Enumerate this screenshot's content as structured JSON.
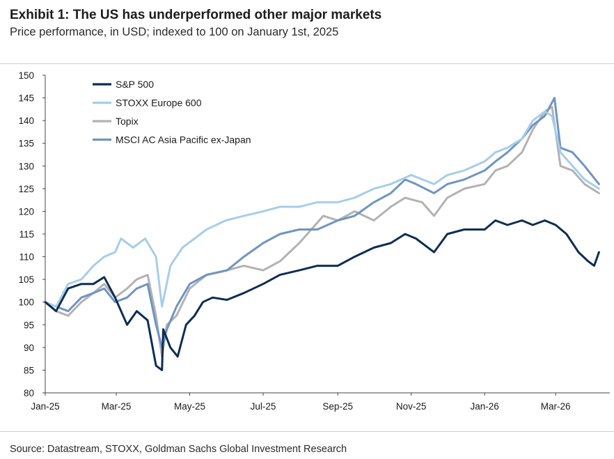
{
  "title": "Exhibit 1: The US has underperformed other major markets",
  "subtitle": "Price performance, in USD; indexed to 100 on January 1st, 2025",
  "source": "Source: Datastream, STOXX, Goldman Sachs Global Investment Research",
  "chart_data": {
    "type": "line",
    "title": "Exhibit 1: The US has underperformed other major markets",
    "ylabel": "",
    "xlabel": "",
    "ylim": [
      80,
      150
    ],
    "yticks": [
      80,
      85,
      90,
      95,
      100,
      105,
      110,
      115,
      120,
      125,
      130,
      135,
      140,
      145,
      150
    ],
    "xlim": [
      "2025-01-01",
      "2026-04-15"
    ],
    "xticks": [
      {
        "date": "2025-01-01",
        "label": "Jan-25"
      },
      {
        "date": "2025-03-01",
        "label": "Mar-25"
      },
      {
        "date": "2025-05-01",
        "label": "May-25"
      },
      {
        "date": "2025-07-01",
        "label": "Jul-25"
      },
      {
        "date": "2025-09-01",
        "label": "Sep-25"
      },
      {
        "date": "2025-11-01",
        "label": "Nov-25"
      },
      {
        "date": "2026-01-01",
        "label": "Jan-26"
      },
      {
        "date": "2026-03-01",
        "label": "Mar-26"
      }
    ],
    "grid": false,
    "legend_position": "top-left",
    "series": [
      {
        "name": "S&P 500",
        "color": "#0d2d52",
        "points": [
          [
            "2025-01-01",
            100
          ],
          [
            "2025-01-10",
            98
          ],
          [
            "2025-01-20",
            103
          ],
          [
            "2025-01-31",
            104
          ],
          [
            "2025-02-10",
            104
          ],
          [
            "2025-02-19",
            105.5
          ],
          [
            "2025-02-28",
            101
          ],
          [
            "2025-03-10",
            95
          ],
          [
            "2025-03-18",
            98
          ],
          [
            "2025-03-27",
            96
          ],
          [
            "2025-04-03",
            86
          ],
          [
            "2025-04-08",
            85
          ],
          [
            "2025-04-09",
            94
          ],
          [
            "2025-04-15",
            90
          ],
          [
            "2025-04-21",
            88
          ],
          [
            "2025-04-28",
            95
          ],
          [
            "2025-05-05",
            97
          ],
          [
            "2025-05-12",
            100
          ],
          [
            "2025-05-20",
            101
          ],
          [
            "2025-06-01",
            100.5
          ],
          [
            "2025-06-15",
            102
          ],
          [
            "2025-07-01",
            104
          ],
          [
            "2025-07-15",
            106
          ],
          [
            "2025-07-31",
            107
          ],
          [
            "2025-08-15",
            108
          ],
          [
            "2025-09-01",
            108
          ],
          [
            "2025-09-15",
            110
          ],
          [
            "2025-10-01",
            112
          ],
          [
            "2025-10-15",
            113
          ],
          [
            "2025-10-27",
            115
          ],
          [
            "2025-11-05",
            114
          ],
          [
            "2025-11-20",
            111
          ],
          [
            "2025-12-01",
            115
          ],
          [
            "2025-12-15",
            116
          ],
          [
            "2026-01-01",
            116
          ],
          [
            "2026-01-10",
            118
          ],
          [
            "2026-01-20",
            117
          ],
          [
            "2026-02-01",
            118
          ],
          [
            "2026-02-10",
            117
          ],
          [
            "2026-02-20",
            118
          ],
          [
            "2026-03-01",
            117
          ],
          [
            "2026-03-10",
            115
          ],
          [
            "2026-03-20",
            111
          ],
          [
            "2026-03-28",
            109
          ],
          [
            "2026-04-02",
            108
          ],
          [
            "2026-04-06",
            111
          ]
        ]
      },
      {
        "name": "STOXX Europe 600",
        "color": "#a7cde8",
        "points": [
          [
            "2025-01-01",
            100
          ],
          [
            "2025-01-10",
            99
          ],
          [
            "2025-01-20",
            104
          ],
          [
            "2025-01-31",
            105
          ],
          [
            "2025-02-10",
            108
          ],
          [
            "2025-02-19",
            110
          ],
          [
            "2025-02-28",
            111
          ],
          [
            "2025-03-05",
            114
          ],
          [
            "2025-03-15",
            112
          ],
          [
            "2025-03-25",
            114
          ],
          [
            "2025-04-03",
            110
          ],
          [
            "2025-04-08",
            99
          ],
          [
            "2025-04-15",
            108
          ],
          [
            "2025-04-25",
            112
          ],
          [
            "2025-05-05",
            114
          ],
          [
            "2025-05-15",
            116
          ],
          [
            "2025-05-31",
            118
          ],
          [
            "2025-06-15",
            119
          ],
          [
            "2025-07-01",
            120
          ],
          [
            "2025-07-15",
            121
          ],
          [
            "2025-07-31",
            121
          ],
          [
            "2025-08-15",
            122
          ],
          [
            "2025-09-01",
            122
          ],
          [
            "2025-09-15",
            123
          ],
          [
            "2025-10-01",
            125
          ],
          [
            "2025-10-15",
            126
          ],
          [
            "2025-11-01",
            128
          ],
          [
            "2025-11-20",
            126
          ],
          [
            "2025-12-01",
            128
          ],
          [
            "2025-12-15",
            129
          ],
          [
            "2026-01-01",
            131
          ],
          [
            "2026-01-10",
            133
          ],
          [
            "2026-01-20",
            134
          ],
          [
            "2026-02-01",
            136
          ],
          [
            "2026-02-10",
            140
          ],
          [
            "2026-02-20",
            142
          ],
          [
            "2026-02-26",
            141
          ],
          [
            "2026-03-05",
            133
          ],
          [
            "2026-03-15",
            130
          ],
          [
            "2026-03-25",
            127
          ],
          [
            "2026-04-06",
            125
          ]
        ]
      },
      {
        "name": "Topix",
        "color": "#b2b2b2",
        "points": [
          [
            "2025-01-01",
            100
          ],
          [
            "2025-01-10",
            98
          ],
          [
            "2025-01-20",
            97
          ],
          [
            "2025-01-31",
            100
          ],
          [
            "2025-02-10",
            102
          ],
          [
            "2025-02-19",
            104
          ],
          [
            "2025-02-28",
            101
          ],
          [
            "2025-03-10",
            103
          ],
          [
            "2025-03-18",
            105
          ],
          [
            "2025-03-27",
            106
          ],
          [
            "2025-04-03",
            97
          ],
          [
            "2025-04-08",
            88
          ],
          [
            "2025-04-12",
            95
          ],
          [
            "2025-04-20",
            97
          ],
          [
            "2025-05-01",
            103
          ],
          [
            "2025-05-15",
            106
          ],
          [
            "2025-06-01",
            107
          ],
          [
            "2025-06-15",
            108
          ],
          [
            "2025-07-01",
            107
          ],
          [
            "2025-07-15",
            109
          ],
          [
            "2025-07-31",
            113
          ],
          [
            "2025-08-10",
            116
          ],
          [
            "2025-08-20",
            119
          ],
          [
            "2025-09-01",
            118
          ],
          [
            "2025-09-15",
            120
          ],
          [
            "2025-10-01",
            118
          ],
          [
            "2025-10-15",
            121
          ],
          [
            "2025-10-27",
            123
          ],
          [
            "2025-11-10",
            122
          ],
          [
            "2025-11-20",
            119
          ],
          [
            "2025-12-01",
            123
          ],
          [
            "2025-12-15",
            125
          ],
          [
            "2026-01-01",
            126
          ],
          [
            "2026-01-10",
            129
          ],
          [
            "2026-01-20",
            130
          ],
          [
            "2026-02-01",
            133
          ],
          [
            "2026-02-10",
            138
          ],
          [
            "2026-02-20",
            142
          ],
          [
            "2026-02-26",
            143
          ],
          [
            "2026-03-05",
            130
          ],
          [
            "2026-03-15",
            129
          ],
          [
            "2026-03-25",
            126
          ],
          [
            "2026-04-06",
            124
          ]
        ]
      },
      {
        "name": "MSCI AC Asia Pacific ex-Japan",
        "color": "#7094c2",
        "points": [
          [
            "2025-01-01",
            100
          ],
          [
            "2025-01-10",
            99
          ],
          [
            "2025-01-20",
            98
          ],
          [
            "2025-01-31",
            101
          ],
          [
            "2025-02-10",
            102
          ],
          [
            "2025-02-19",
            103
          ],
          [
            "2025-02-28",
            100
          ],
          [
            "2025-03-10",
            101
          ],
          [
            "2025-03-18",
            103
          ],
          [
            "2025-03-27",
            104
          ],
          [
            "2025-04-03",
            95
          ],
          [
            "2025-04-08",
            90
          ],
          [
            "2025-04-12",
            94
          ],
          [
            "2025-04-20",
            99
          ],
          [
            "2025-05-01",
            104
          ],
          [
            "2025-05-15",
            106
          ],
          [
            "2025-06-01",
            107
          ],
          [
            "2025-06-15",
            110
          ],
          [
            "2025-07-01",
            113
          ],
          [
            "2025-07-15",
            115
          ],
          [
            "2025-07-31",
            116
          ],
          [
            "2025-08-15",
            116
          ],
          [
            "2025-09-01",
            118
          ],
          [
            "2025-09-15",
            119
          ],
          [
            "2025-10-01",
            122
          ],
          [
            "2025-10-15",
            124
          ],
          [
            "2025-10-27",
            127
          ],
          [
            "2025-11-05",
            126
          ],
          [
            "2025-11-20",
            124
          ],
          [
            "2025-12-01",
            126
          ],
          [
            "2025-12-15",
            127
          ],
          [
            "2026-01-01",
            129
          ],
          [
            "2026-01-10",
            131
          ],
          [
            "2026-01-20",
            133
          ],
          [
            "2026-02-01",
            136
          ],
          [
            "2026-02-10",
            139
          ],
          [
            "2026-02-20",
            141
          ],
          [
            "2026-02-28",
            145
          ],
          [
            "2026-03-05",
            134
          ],
          [
            "2026-03-15",
            133
          ],
          [
            "2026-03-25",
            130
          ],
          [
            "2026-04-06",
            126
          ]
        ]
      }
    ]
  }
}
